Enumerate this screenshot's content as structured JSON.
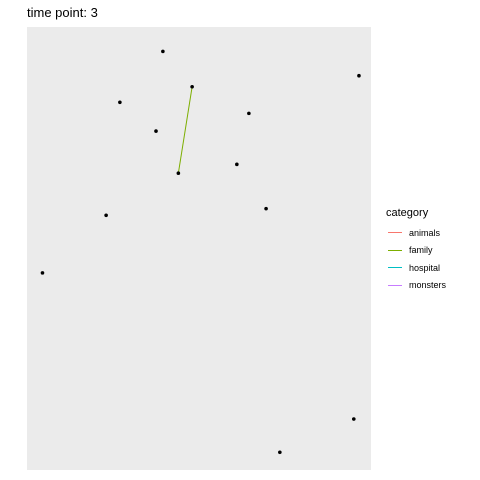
{
  "title": "time point: 3",
  "chart_data": {
    "type": "network",
    "xlim": [
      0,
      1
    ],
    "ylim": [
      0,
      1
    ],
    "grid": false,
    "legend_position": "right",
    "nodes": [
      {
        "id": 1,
        "x": 0.395,
        "y": 0.945
      },
      {
        "id": 2,
        "x": 0.27,
        "y": 0.83
      },
      {
        "id": 3,
        "x": 0.48,
        "y": 0.865
      },
      {
        "id": 4,
        "x": 0.965,
        "y": 0.89
      },
      {
        "id": 5,
        "x": 0.645,
        "y": 0.805
      },
      {
        "id": 6,
        "x": 0.375,
        "y": 0.765
      },
      {
        "id": 7,
        "x": 0.61,
        "y": 0.69
      },
      {
        "id": 8,
        "x": 0.44,
        "y": 0.67
      },
      {
        "id": 9,
        "x": 0.695,
        "y": 0.59
      },
      {
        "id": 10,
        "x": 0.23,
        "y": 0.575
      },
      {
        "id": 11,
        "x": 0.045,
        "y": 0.445
      },
      {
        "id": 12,
        "x": 0.95,
        "y": 0.115
      },
      {
        "id": 13,
        "x": 0.735,
        "y": 0.04
      }
    ],
    "edges": [
      {
        "from": 3,
        "to": 8,
        "category": "family"
      }
    ],
    "legend": {
      "title": "category",
      "entries": [
        {
          "label": "animals",
          "color": "#F8766D"
        },
        {
          "label": "family",
          "color": "#7CAE00"
        },
        {
          "label": "hospital",
          "color": "#00BFC4"
        },
        {
          "label": "monsters",
          "color": "#C77CFF"
        }
      ]
    },
    "colors": {
      "panel": "#EBEBEB",
      "point": "#000000"
    }
  }
}
